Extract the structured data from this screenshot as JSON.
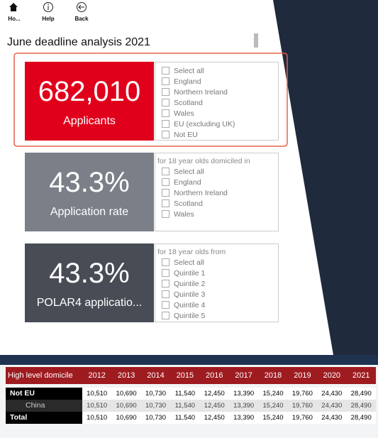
{
  "nav": {
    "items": [
      "Ho...",
      "Help",
      "Back"
    ]
  },
  "title": "June deadline analysis 2021",
  "cards": [
    {
      "value": "682,010",
      "label": "Applicants",
      "options": [
        "Select all",
        "England",
        "Northern Ireland",
        "Scotland",
        "Wales",
        "EU (excluding UK)",
        "Not EU"
      ]
    },
    {
      "value": "43.3%",
      "label": "Application rate",
      "caption": "for 18 year olds domiciled in",
      "options": [
        "Select all",
        "England",
        "Northern Ireland",
        "Scotland",
        "Wales"
      ]
    },
    {
      "value": "43.3%",
      "label": "POLAR4 applicatio...",
      "caption": "for 18 year olds from",
      "options": [
        "Select all",
        "Quintile 1",
        "Quintile 2",
        "Quintile 3",
        "Quintile 4",
        "Quintile 5"
      ]
    }
  ],
  "table": {
    "header": [
      "High level domicile",
      "2012",
      "2013",
      "2014",
      "2015",
      "2016",
      "2017",
      "2018",
      "2019",
      "2020",
      "2021"
    ],
    "rows": [
      [
        "Not EU",
        "10,510",
        "10,690",
        "10,730",
        "11,540",
        "12,450",
        "13,390",
        "15,240",
        "19,760",
        "24,430",
        "28,490"
      ],
      [
        "China",
        "10,510",
        "10,690",
        "10,730",
        "11,540",
        "12,450",
        "13,390",
        "15,240",
        "19,760",
        "24,430",
        "28,490"
      ],
      [
        "Total",
        "10,510",
        "10,690",
        "10,730",
        "11,540",
        "12,450",
        "13,390",
        "15,240",
        "19,760",
        "24,430",
        "28,490"
      ]
    ]
  }
}
